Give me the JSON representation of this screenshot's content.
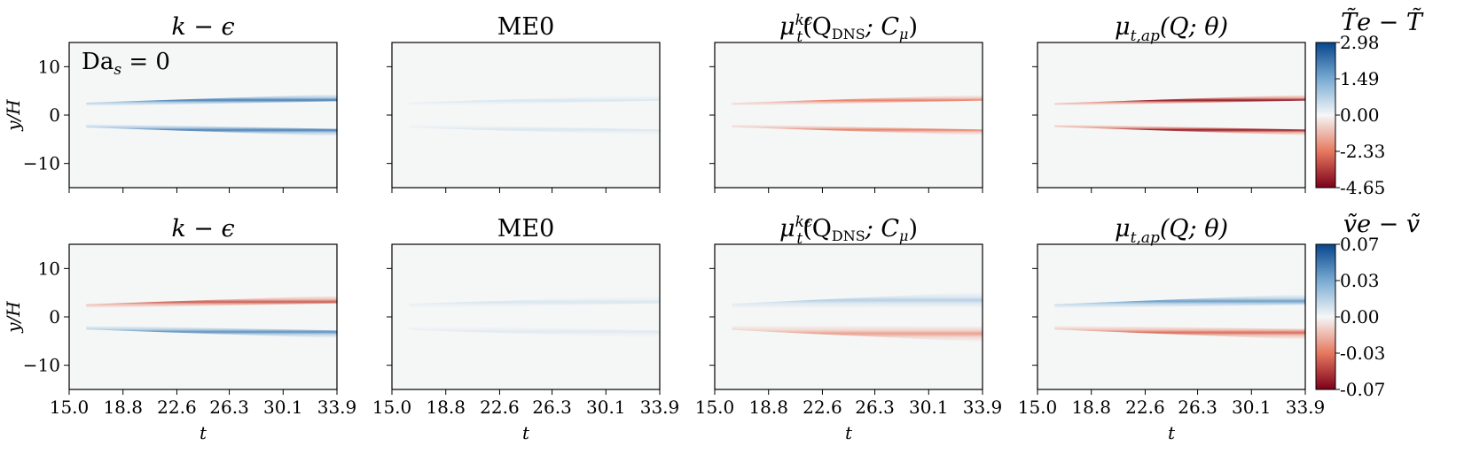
{
  "chart_data": {
    "type": "heatmap",
    "layout": "2x4 grid",
    "x_ticks": [
      "15.0",
      "18.8",
      "22.6",
      "26.3",
      "30.1",
      "33.9"
    ],
    "x_range": [
      15.0,
      33.9
    ],
    "y_ticks": [
      "10",
      "0",
      "−10"
    ],
    "y_tick_values": [
      10,
      0,
      -10
    ],
    "y_range": [
      -15,
      15
    ],
    "xlabel": "t",
    "ylabel": "y/H",
    "annotation": "Da",
    "annotation_sub": "s",
    "annotation_rest": " = 0",
    "columns": [
      {
        "title_main": "k − ϵ",
        "sup": "",
        "args": ""
      },
      {
        "title_main": "ME0",
        "sup": "",
        "args": ""
      },
      {
        "title_main": "μ",
        "sub": "t",
        "sup": "kϵ",
        "args": "(Q",
        "args_sub": "DNS",
        "args_rest": "; C",
        "args_sub2": "μ",
        "args_end": ")"
      },
      {
        "title_main": "μ",
        "sub": "t,ap",
        "sup": "",
        "args": "(Q; θ)"
      }
    ],
    "rows": [
      {
        "quantity": "T̃e − T̃",
        "colorbar_ticks": [
          "2.98",
          "1.49",
          "0.00",
          "-2.33",
          "-4.65"
        ],
        "colorbar_range": [
          -4.65,
          2.98
        ],
        "panels": [
          {
            "model": "k-eps",
            "upper_amp": 2.2,
            "lower_amp": 2.2,
            "width_start": 0.35,
            "width_end": 0.75
          },
          {
            "model": "ME0",
            "upper_amp": 0.35,
            "lower_amp": 0.35,
            "width_start": 0.4,
            "width_end": 0.6
          },
          {
            "model": "mu_t_keps",
            "upper_amp": -2.3,
            "lower_amp": -2.3,
            "width_start": 0.3,
            "width_end": 0.6
          },
          {
            "model": "mu_t_ap",
            "upper_amp": -4.4,
            "lower_amp": -4.4,
            "width_start": 0.25,
            "width_end": 0.6
          }
        ]
      },
      {
        "quantity": "ṽe − ṽ",
        "colorbar_ticks": [
          "0.07",
          "0.03",
          "0.00",
          "-0.03",
          "-0.07"
        ],
        "colorbar_range": [
          -0.07,
          0.07
        ],
        "panels": [
          {
            "model": "k-eps",
            "upper_amp": -0.045,
            "lower_amp": 0.045,
            "width_start": 0.4,
            "width_end": 0.8
          },
          {
            "model": "ME0",
            "upper_amp": 0.008,
            "lower_amp": 0.006,
            "width_start": 0.5,
            "width_end": 0.8
          },
          {
            "model": "mu_t_keps",
            "upper_amp": 0.018,
            "lower_amp": -0.025,
            "width_start": 0.5,
            "width_end": 1.6
          },
          {
            "model": "mu_t_ap",
            "upper_amp": 0.04,
            "lower_amp": -0.04,
            "width_start": 0.4,
            "width_end": 1.1
          }
        ]
      }
    ]
  }
}
